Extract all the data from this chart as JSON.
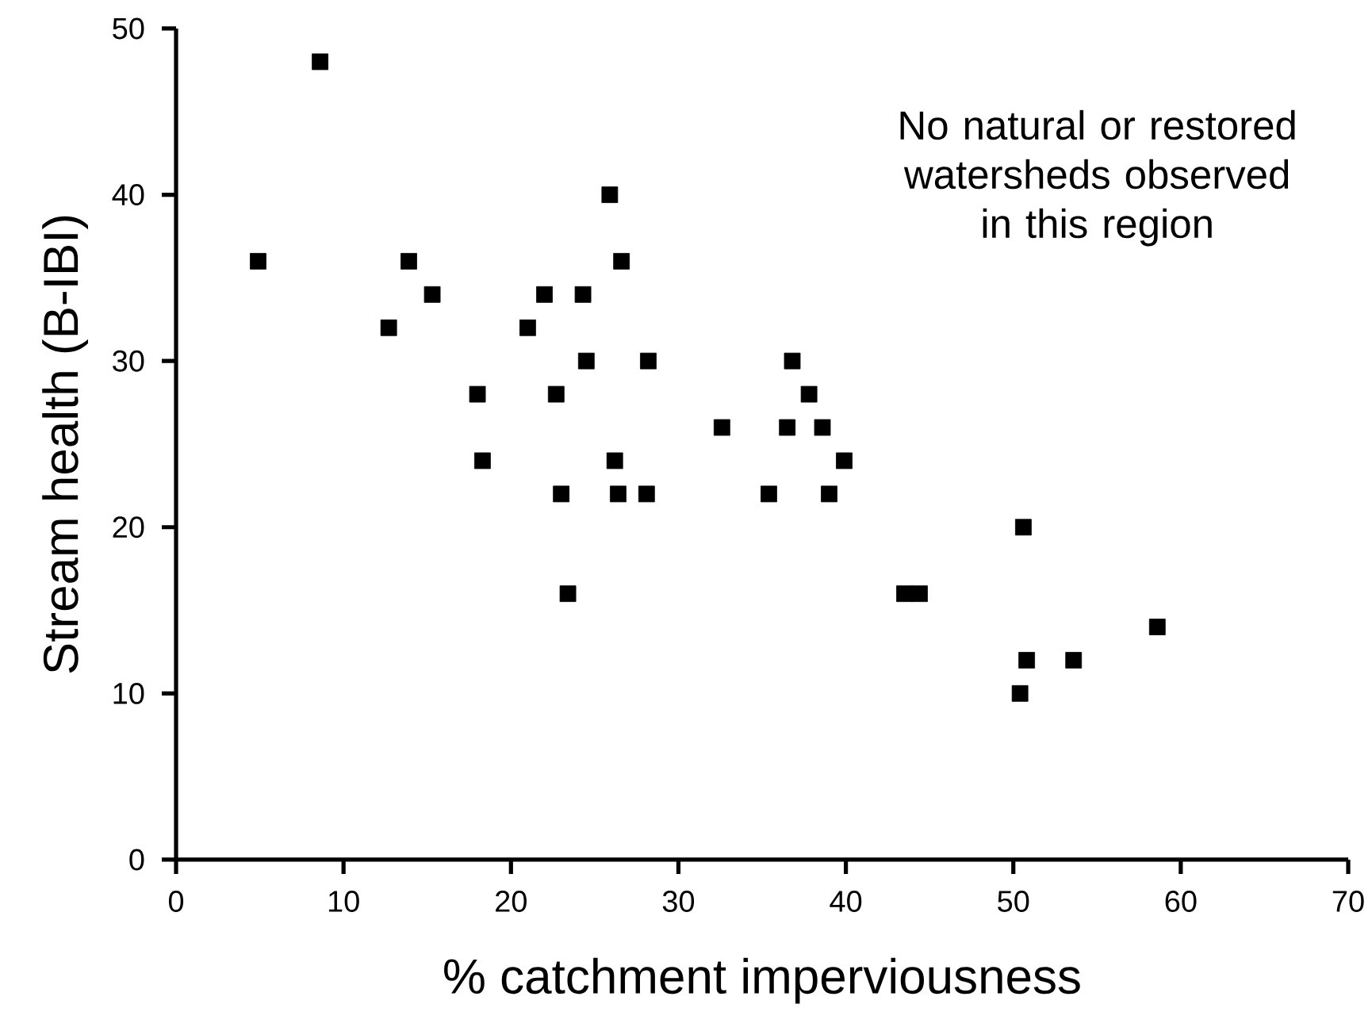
{
  "chart_data": {
    "type": "scatter",
    "xlabel": "% catchment imperviousness",
    "ylabel": "Stream health (B-IBI)",
    "annotations": [
      "No natural or restored watersheds observed in this region"
    ],
    "series": [
      {
        "color": "#000000",
        "x": [
          4.9,
          8.6,
          25.9,
          13.9,
          26.6,
          15.3,
          22.0,
          24.3,
          12.7,
          21.0,
          24.5,
          28.2,
          18.0,
          22.7,
          18.3,
          26.2,
          23.0,
          26.4,
          28.1,
          23.4,
          36.8,
          37.8,
          32.6,
          36.5,
          38.6,
          39.9,
          35.4,
          39.0,
          50.6,
          43.5,
          44.4,
          58.6,
          50.8,
          53.6,
          50.4
        ],
        "values": [
          36,
          48,
          40,
          36,
          36,
          34,
          34,
          34,
          32,
          32,
          30,
          30,
          28,
          28,
          24,
          24,
          22,
          22,
          22,
          16,
          30,
          28,
          26,
          26,
          26,
          24,
          22,
          22,
          20,
          16,
          16,
          14,
          12,
          12,
          10
        ]
      }
    ],
    "xlim": [
      0,
      70
    ],
    "ylim": [
      0,
      50
    ],
    "xticks": [
      0,
      10,
      20,
      30,
      40,
      50,
      60,
      70
    ],
    "yticks": [
      0,
      10,
      20,
      30,
      40,
      50
    ],
    "marker": "square",
    "grid": false
  }
}
